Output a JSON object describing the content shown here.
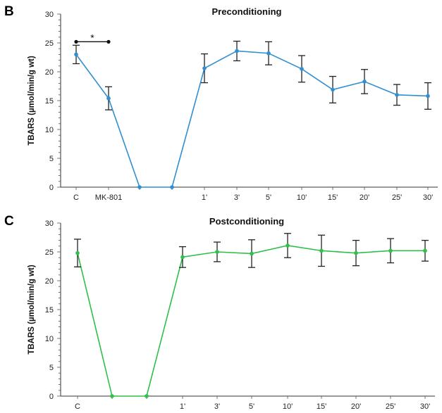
{
  "chart_data": [
    {
      "panel": "B",
      "type": "line",
      "title": "Preconditioning",
      "ylabel": "TBARS (µmol/min/g wt)",
      "xlabel": "",
      "ylim": [
        0,
        30
      ],
      "yticks": [
        "0",
        "5",
        "10",
        "15",
        "20",
        "25",
        "30"
      ],
      "categories": [
        "C",
        "MK-801",
        "",
        "",
        "1'",
        "3'",
        "5'",
        "10'",
        "15'",
        "20'",
        "25'",
        "30'"
      ],
      "series": [
        {
          "color": "#2f8fd0",
          "values": [
            23.0,
            15.4,
            0,
            0,
            20.6,
            23.6,
            23.2,
            20.5,
            16.9,
            18.3,
            16.0,
            15.8
          ],
          "errors": [
            1.6,
            2.0,
            null,
            null,
            2.5,
            1.7,
            2.0,
            2.3,
            2.3,
            2.1,
            1.8,
            2.3
          ]
        }
      ],
      "annotation": {
        "text": "*",
        "from": "C",
        "to": "MK-801",
        "y": 25.2
      }
    },
    {
      "panel": "C",
      "type": "line",
      "title": "Postconditioning",
      "ylabel": "TBARS (µmol/min/g wt)",
      "xlabel": "",
      "ylim": [
        0,
        30
      ],
      "yticks": [
        "0",
        "5",
        "10",
        "15",
        "20",
        "25",
        "30"
      ],
      "categories": [
        "C",
        "",
        "",
        "1'",
        "3'",
        "5'",
        "10'",
        "15'",
        "20'",
        "25'",
        "30'"
      ],
      "series": [
        {
          "color": "#2ec04a",
          "values": [
            24.8,
            0,
            0,
            24.1,
            25.0,
            24.7,
            26.1,
            25.2,
            24.8,
            25.2,
            25.2
          ],
          "errors": [
            2.4,
            null,
            null,
            1.8,
            1.7,
            2.4,
            2.1,
            2.7,
            2.2,
            2.1,
            1.8
          ]
        }
      ]
    }
  ]
}
